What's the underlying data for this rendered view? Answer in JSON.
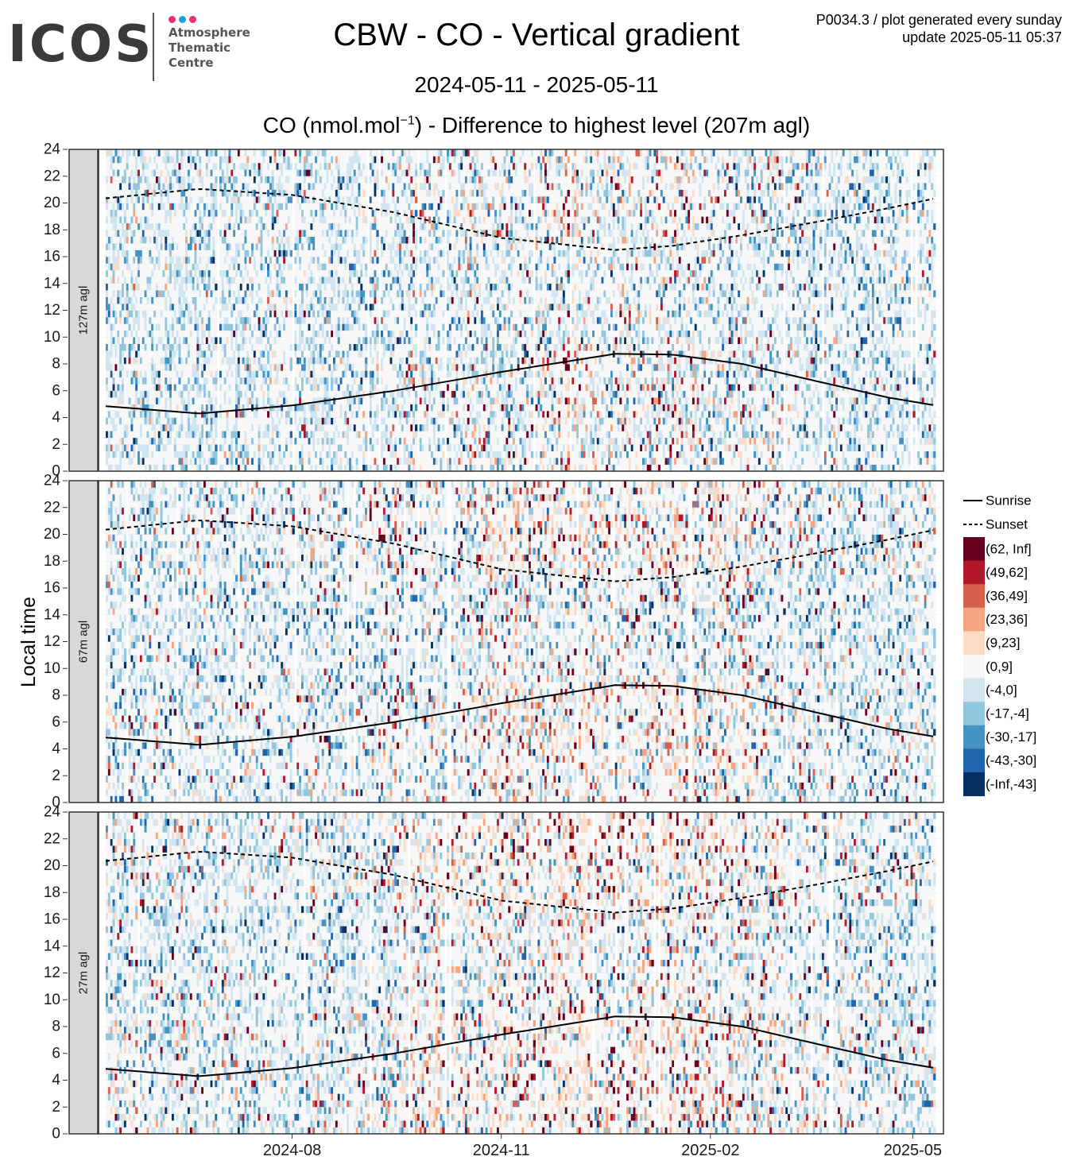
{
  "header": {
    "logo_text": "ICOS",
    "logo_subtitle": [
      "Atmosphere",
      "Thematic",
      "Centre"
    ],
    "logo_dot_colors": [
      "#e8336d",
      "#1ea0e6",
      "#e8336d"
    ],
    "title": "CBW - CO - Vertical gradient",
    "date_range": "2024-05-11 - 2025-05-11",
    "subtitle_prefix": "CO (nmol.mol",
    "subtitle_sup": "−1",
    "subtitle_suffix": ") - Difference to highest level (207m agl)",
    "meta_line1": "P0034.3 / plot generated every sunday",
    "meta_line2": "update  2025-05-11 05:37"
  },
  "chart_data": {
    "type": "heatmap",
    "ylabel": "Local time",
    "x_range": [
      "2024-05-11",
      "2025-05-11"
    ],
    "x_ticks": [
      "2024-08",
      "2024-11",
      "2025-02",
      "2025-05"
    ],
    "y_range": [
      0,
      24
    ],
    "y_ticks": [
      0,
      2,
      4,
      6,
      8,
      10,
      12,
      14,
      16,
      18,
      20,
      22,
      24
    ],
    "grid": true,
    "legend_position": "right",
    "panels": [
      {
        "label": "127m agl",
        "intensity": 0.55
      },
      {
        "label": "67m agl",
        "intensity": 0.85
      },
      {
        "label": "27m agl",
        "intensity": 1.15
      }
    ],
    "line_legend": [
      {
        "label": "Sunrise",
        "style": "solid"
      },
      {
        "label": "Sunset",
        "style": "dashed"
      }
    ],
    "color_bins": [
      {
        "label": "(62, Inf]",
        "color": "#67001f"
      },
      {
        "label": "(49,62]",
        "color": "#b2182b"
      },
      {
        "label": "(36,49]",
        "color": "#d6604d"
      },
      {
        "label": "(23,36]",
        "color": "#f4a582"
      },
      {
        "label": "(9,23]",
        "color": "#fddbc7"
      },
      {
        "label": "(0,9]",
        "color": "#f7f7f7"
      },
      {
        "label": "(-4,0]",
        "color": "#d1e5f0"
      },
      {
        "label": "(-17,-4]",
        "color": "#92c5de"
      },
      {
        "label": "(-30,-17]",
        "color": "#4393c3"
      },
      {
        "label": "(-43,-30]",
        "color": "#2166ac"
      },
      {
        "label": "(-Inf,-43]",
        "color": "#053061"
      }
    ],
    "sunrise": [
      {
        "date": "2024-05-11",
        "hour": 4.85
      },
      {
        "date": "2024-06-21",
        "hour": 4.3
      },
      {
        "date": "2024-08-01",
        "hour": 4.9
      },
      {
        "date": "2024-09-15",
        "hour": 6.0
      },
      {
        "date": "2024-11-01",
        "hour": 7.4
      },
      {
        "date": "2024-12-21",
        "hour": 8.75
      },
      {
        "date": "2025-01-15",
        "hour": 8.7
      },
      {
        "date": "2025-02-15",
        "hour": 8.0
      },
      {
        "date": "2025-03-20",
        "hour": 6.7
      },
      {
        "date": "2025-04-20",
        "hour": 5.5
      },
      {
        "date": "2025-05-11",
        "hour": 4.9
      }
    ],
    "sunset": [
      {
        "date": "2024-05-11",
        "hour": 20.35
      },
      {
        "date": "2024-06-21",
        "hour": 21.05
      },
      {
        "date": "2024-08-01",
        "hour": 20.6
      },
      {
        "date": "2024-09-15",
        "hour": 19.3
      },
      {
        "date": "2024-11-01",
        "hour": 17.4
      },
      {
        "date": "2024-12-21",
        "hour": 16.5
      },
      {
        "date": "2025-01-15",
        "hour": 16.8
      },
      {
        "date": "2025-02-15",
        "hour": 17.6
      },
      {
        "date": "2025-03-20",
        "hour": 18.6
      },
      {
        "date": "2025-04-20",
        "hour": 19.6
      },
      {
        "date": "2025-05-11",
        "hour": 20.35
      }
    ]
  }
}
